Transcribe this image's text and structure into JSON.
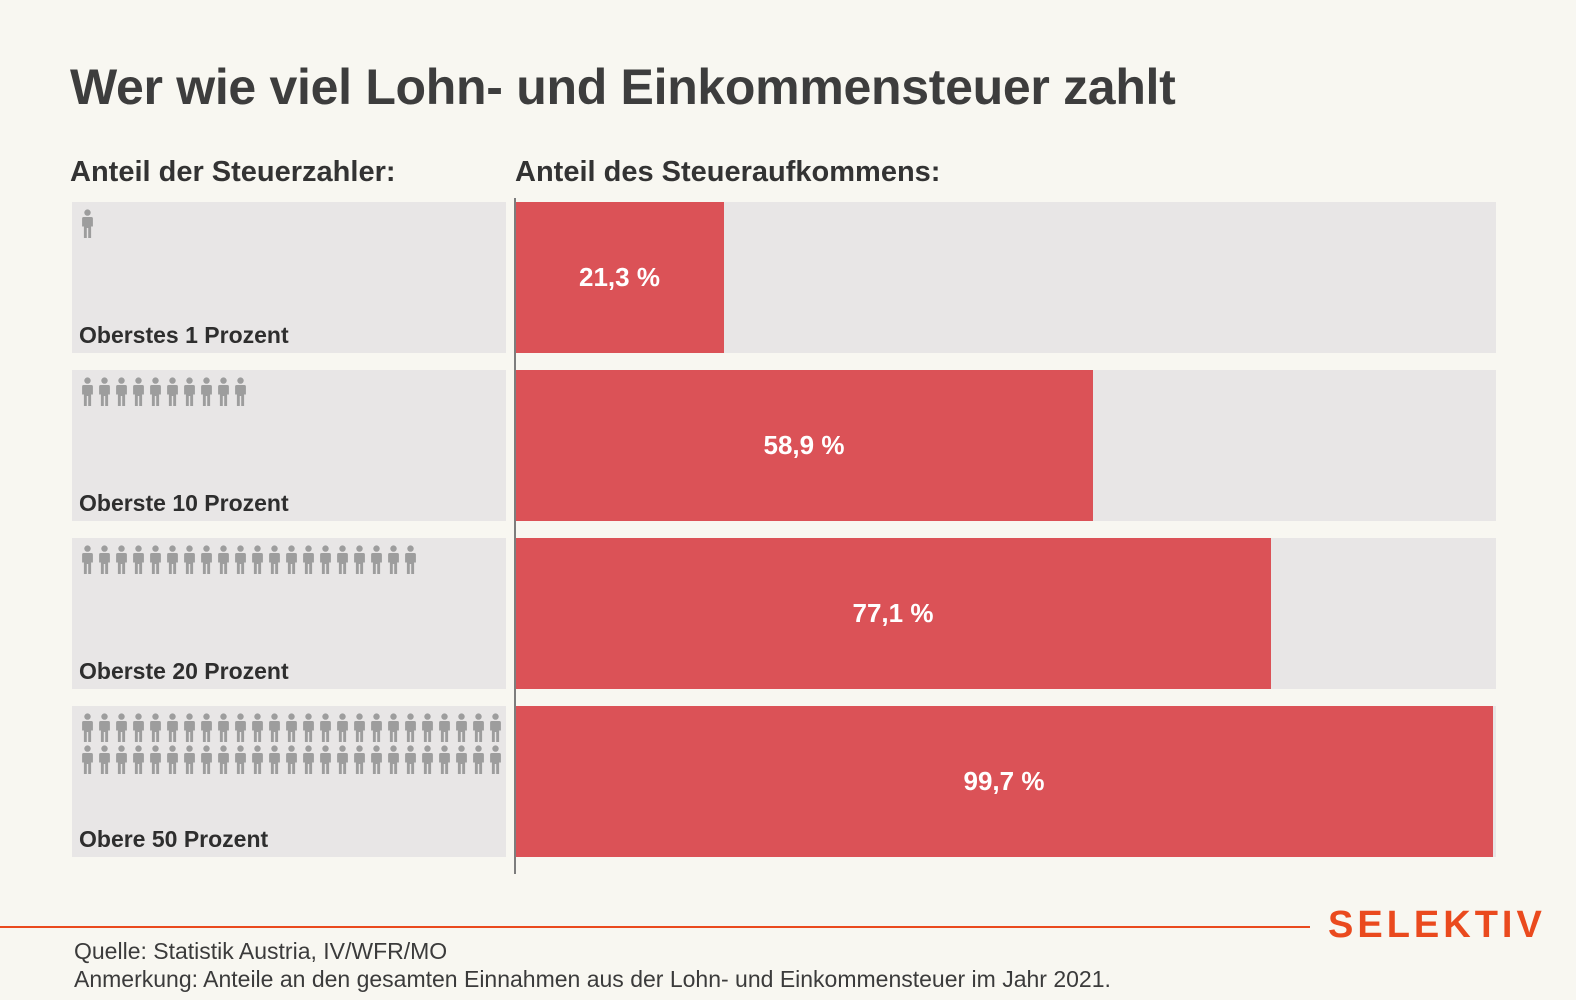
{
  "title": "Wer wie viel Lohn- und Einkommensteuer zahlt",
  "left_header": "Anteil der Steuerzahler:",
  "right_header": "Anteil des Steueraufkommens:",
  "chart_data": {
    "type": "bar",
    "orientation": "horizontal",
    "categories": [
      "Oberstes 1 Prozent",
      "Oberste 10 Prozent",
      "Oberste 20 Prozent",
      "Obere 50 Prozent"
    ],
    "values": [
      21.3,
      58.9,
      77.1,
      99.7
    ],
    "value_labels": [
      "21,3 %",
      "58,9 %",
      "77,1 %",
      "99,7 %"
    ],
    "people_icons": [
      1,
      10,
      20,
      50
    ],
    "xlim": [
      0,
      100
    ],
    "grid": false,
    "legend": "none"
  },
  "source": "Quelle: Statistik Austria, IV/WFR/MO",
  "note": "Anmerkung: Anteile an den gesamten Einnahmen aus der Lohn- und Einkommensteuer im Jahr 2021.",
  "brand": "SELEKTIV",
  "colors": {
    "bar": "#db5257",
    "track": "#e8e6e6",
    "person_icon": "#9d9d9d",
    "brand": "#ea4a1e",
    "background": "#f8f7f1"
  },
  "icons": {
    "person": "person-icon"
  }
}
